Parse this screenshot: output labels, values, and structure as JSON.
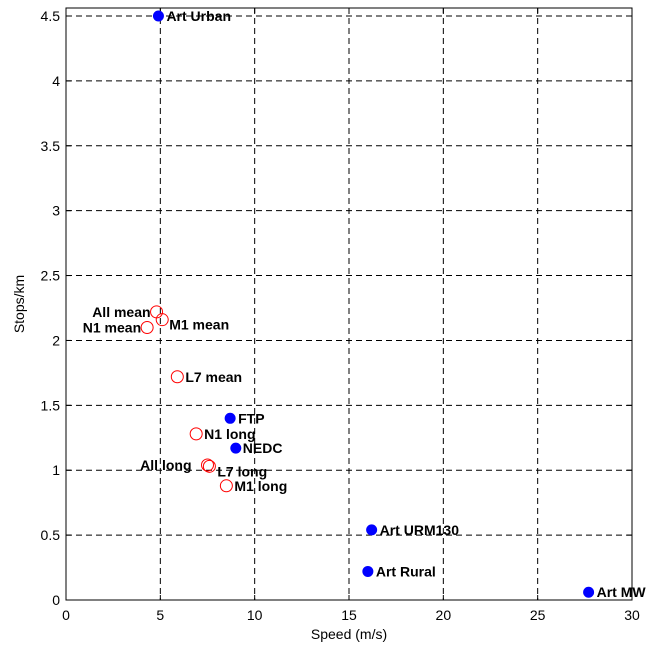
{
  "chart_data": {
    "type": "scatter",
    "xlabel": "Speed (m/s)",
    "ylabel": "Stops/km",
    "xlim": [
      0,
      30
    ],
    "ylim": [
      0,
      4.5
    ],
    "xticks": [
      "0",
      "5",
      "10",
      "15",
      "20",
      "25",
      "30"
    ],
    "yticks": [
      "0",
      "0.5",
      "1",
      "1.5",
      "2",
      "2.5",
      "3",
      "3.5",
      "4",
      "4.5"
    ],
    "grid": true,
    "series": [
      {
        "marker": "filled",
        "color": "#0000ff",
        "points": [
          {
            "label": "Art Urban",
            "x": 4.9,
            "y": 4.5
          },
          {
            "label": "FTP",
            "x": 8.7,
            "y": 1.4
          },
          {
            "label": "NEDC",
            "x": 9.0,
            "y": 1.17
          },
          {
            "label": "Art URM130",
            "x": 16.2,
            "y": 0.54
          },
          {
            "label": "Art Rural",
            "x": 16.0,
            "y": 0.22
          },
          {
            "label": "Art MW",
            "x": 27.7,
            "y": 0.06
          }
        ]
      },
      {
        "marker": "open",
        "color": "#ff0000",
        "points": [
          {
            "label": "All mean",
            "x": 4.8,
            "y": 2.22
          },
          {
            "label": "M1 mean",
            "x": 5.1,
            "y": 2.16
          },
          {
            "label": "N1 mean",
            "x": 4.3,
            "y": 2.1
          },
          {
            "label": "L7 mean",
            "x": 5.9,
            "y": 1.72
          },
          {
            "label": "N1 long",
            "x": 6.9,
            "y": 1.28
          },
          {
            "label": "All long",
            "x": 7.5,
            "y": 1.04
          },
          {
            "label": "L7 long",
            "x": 7.6,
            "y": 1.03
          },
          {
            "label": "M1 long",
            "x": 8.5,
            "y": 0.88
          }
        ]
      }
    ]
  }
}
